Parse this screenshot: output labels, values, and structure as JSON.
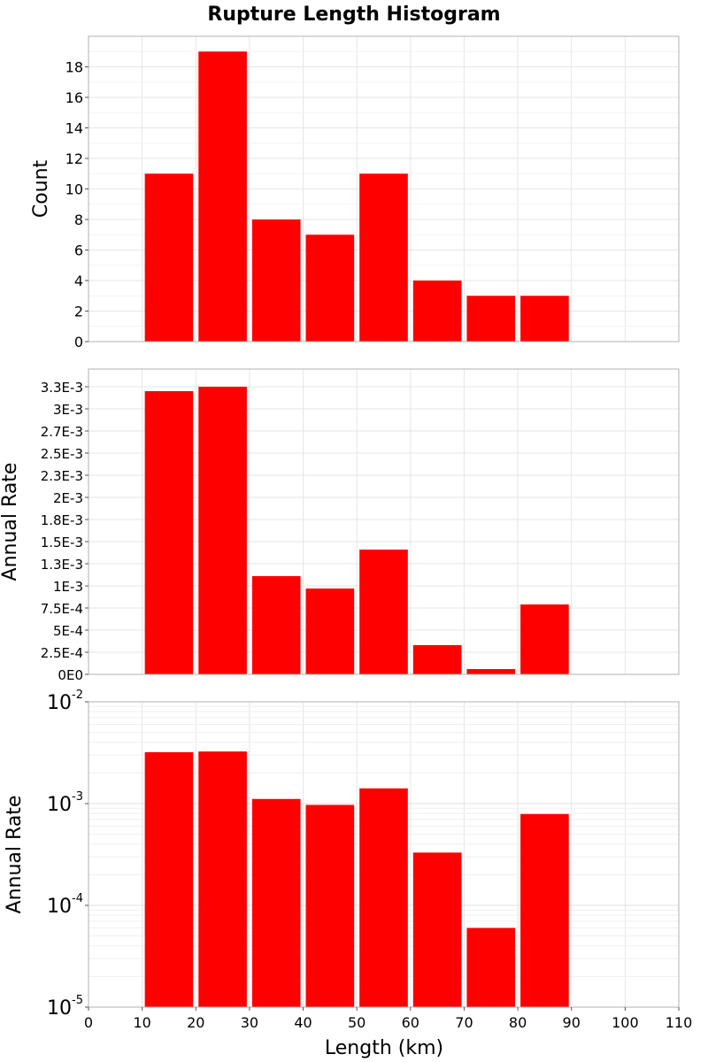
{
  "chart_data": {
    "type": "bar",
    "title": "Rupture Length Histogram",
    "xlabel": "Length (km)",
    "xlim": [
      0,
      110
    ],
    "x_ticks": [
      "0",
      "10",
      "20",
      "30",
      "40",
      "50",
      "60",
      "70",
      "80",
      "90",
      "100",
      "110"
    ],
    "grid": true,
    "bar_color": "#ff0000",
    "bins": [
      {
        "x0": 10,
        "x1": 20
      },
      {
        "x0": 20,
        "x1": 30
      },
      {
        "x0": 30,
        "x1": 40
      },
      {
        "x0": 40,
        "x1": 50
      },
      {
        "x0": 50,
        "x1": 60
      },
      {
        "x0": 60,
        "x1": 70
      },
      {
        "x0": 70,
        "x1": 80
      },
      {
        "x0": 80,
        "x1": 90
      }
    ],
    "panels": [
      {
        "ylabel": "Count",
        "scale": "linear",
        "ylim": [
          0,
          20
        ],
        "y_ticks": [
          {
            "v": 0,
            "label": "0"
          },
          {
            "v": 2,
            "label": "2"
          },
          {
            "v": 4,
            "label": "4"
          },
          {
            "v": 6,
            "label": "6"
          },
          {
            "v": 8,
            "label": "8"
          },
          {
            "v": 10,
            "label": "10"
          },
          {
            "v": 12,
            "label": "12"
          },
          {
            "v": 14,
            "label": "14"
          },
          {
            "v": 16,
            "label": "16"
          },
          {
            "v": 18,
            "label": "18"
          }
        ],
        "values": [
          11,
          19,
          8,
          7,
          11,
          4,
          3,
          3
        ]
      },
      {
        "ylabel": "Annual Rate",
        "scale": "linear",
        "ylim": [
          0,
          0.00345
        ],
        "y_ticks": [
          {
            "v": 0,
            "label": "0E0"
          },
          {
            "v": 0.00025,
            "label": "2.5E-4"
          },
          {
            "v": 0.0005,
            "label": "5E-4"
          },
          {
            "v": 0.00075,
            "label": "7.5E-4"
          },
          {
            "v": 0.001,
            "label": "1E-3"
          },
          {
            "v": 0.00125,
            "label": "1.3E-3"
          },
          {
            "v": 0.0015,
            "label": "1.5E-3"
          },
          {
            "v": 0.00175,
            "label": "1.8E-3"
          },
          {
            "v": 0.002,
            "label": "2E-3"
          },
          {
            "v": 0.00225,
            "label": "2.3E-3"
          },
          {
            "v": 0.0025,
            "label": "2.5E-3"
          },
          {
            "v": 0.00275,
            "label": "2.7E-3"
          },
          {
            "v": 0.003,
            "label": "3E-3"
          },
          {
            "v": 0.00325,
            "label": "3.3E-3"
          }
        ],
        "values": [
          0.0032,
          0.00325,
          0.00111,
          0.00097,
          0.00141,
          0.00033,
          6e-05,
          0.00079
        ]
      },
      {
        "ylabel": "Annual Rate",
        "scale": "log",
        "ylim": [
          1e-05,
          0.01
        ],
        "y_ticks": [
          {
            "v": 1e-05,
            "base": "10",
            "exp": "-5"
          },
          {
            "v": 0.0001,
            "base": "10",
            "exp": "-4"
          },
          {
            "v": 0.001,
            "base": "10",
            "exp": "-3"
          },
          {
            "v": 0.01,
            "base": "10",
            "exp": "-2"
          }
        ],
        "values": [
          0.0032,
          0.00325,
          0.00111,
          0.00097,
          0.00141,
          0.00033,
          6e-05,
          0.00079
        ]
      }
    ]
  }
}
